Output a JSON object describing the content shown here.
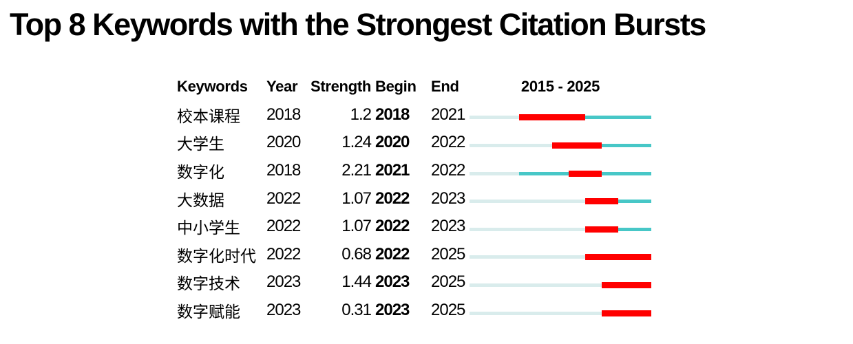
{
  "title": "Top 8 Keywords with the Strongest Citation Bursts",
  "header": {
    "keywords": "Keywords",
    "year": "Year",
    "strength": "Strength",
    "begin": "Begin",
    "end": "End",
    "timeline": "2015 - 2025"
  },
  "colors": {
    "burst": "#ff0000",
    "active": "#47c7c7",
    "inactive": "#d9ecec",
    "text": "#000000"
  },
  "chart_data": {
    "type": "table",
    "title": "Top 8 Keywords with the Strongest Citation Bursts",
    "columns": [
      "Keywords",
      "Year",
      "Strength",
      "Begin",
      "End",
      "2015 - 2025"
    ],
    "timeline_range": [
      2015,
      2025
    ],
    "rows": [
      {
        "keyword": "校本课程",
        "year": 2018,
        "strength": "1.2",
        "begin": 2018,
        "end": 2021
      },
      {
        "keyword": "大学生",
        "year": 2020,
        "strength": "1.24",
        "begin": 2020,
        "end": 2022
      },
      {
        "keyword": "数字化",
        "year": 2018,
        "strength": "2.21",
        "begin": 2021,
        "end": 2022
      },
      {
        "keyword": "大数据",
        "year": 2022,
        "strength": "1.07",
        "begin": 2022,
        "end": 2023
      },
      {
        "keyword": "中小学生",
        "year": 2022,
        "strength": "1.07",
        "begin": 2022,
        "end": 2023
      },
      {
        "keyword": "数字化时代",
        "year": 2022,
        "strength": "0.68",
        "begin": 2022,
        "end": 2025
      },
      {
        "keyword": "数字技术",
        "year": 2023,
        "strength": "1.44",
        "begin": 2023,
        "end": 2025
      },
      {
        "keyword": "数字赋能",
        "year": 2023,
        "strength": "0.31",
        "begin": 2023,
        "end": 2025
      }
    ],
    "legend": {
      "burst_segment": "citation burst period (red)",
      "active_segment": "keyword active period (teal)",
      "inactive_segment": "before first appearance (pale)"
    }
  }
}
